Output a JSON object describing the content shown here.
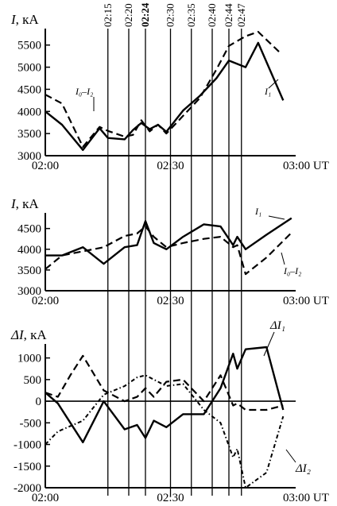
{
  "chart_data": [
    {
      "type": "line",
      "ylabel_symbol": "I",
      "ylabel_unit": ", кА",
      "yticks": [
        3000,
        3500,
        4000,
        4500,
        5000,
        5500
      ],
      "ylim": [
        3000,
        5800
      ],
      "xlim": [
        0,
        60
      ],
      "xtick_labels": [
        {
          "t": 0,
          "label": "02:00"
        },
        {
          "t": 30,
          "label": "02:30"
        },
        {
          "t": 60,
          "label": "03:00 UT"
        }
      ],
      "series": [
        {
          "key": "I1",
          "style": "solid",
          "label": "I₁",
          "x": [
            0,
            4,
            9,
            13,
            15,
            19,
            21,
            23,
            25,
            27,
            29,
            33,
            37,
            41,
            44,
            48,
            51
          ],
          "y": [
            4000,
            3700,
            3130,
            3620,
            3400,
            3370,
            3580,
            3740,
            3600,
            3700,
            3540,
            4020,
            4350,
            4750,
            5150,
            5000,
            5550
          ]
        },
        {
          "key": "I0I2",
          "style": "dashed",
          "label": "I₀–I₂",
          "x": [
            0,
            4,
            9,
            13,
            15,
            19,
            21,
            23,
            25,
            27,
            29,
            33,
            37,
            41,
            44,
            48,
            51
          ],
          "y": [
            4380,
            4180,
            3200,
            3650,
            3560,
            3430,
            3470,
            3800,
            3550,
            3700,
            3500,
            3900,
            4300,
            4950,
            5480,
            5700,
            5800
          ]
        }
      ],
      "end_points": [
        {
          "key": "I1",
          "x": 57,
          "y": 4250
        },
        {
          "key": "I0I2",
          "x": 56,
          "y": 5350
        }
      ]
    },
    {
      "type": "line",
      "ylabel_symbol": "I",
      "ylabel_unit": ", кА",
      "yticks": [
        3000,
        3500,
        4000,
        4500
      ],
      "ylim": [
        3000,
        4800
      ],
      "xlim": [
        0,
        60
      ],
      "xtick_labels": [
        {
          "t": 0,
          "label": "02:00"
        },
        {
          "t": 30,
          "label": "02:30"
        },
        {
          "t": 60,
          "label": "03:00 UT"
        }
      ],
      "series": [
        {
          "key": "I1",
          "style": "solid",
          "label": "I₁",
          "x": [
            0,
            4,
            9,
            14,
            19,
            22,
            24,
            26,
            29,
            33,
            38,
            42,
            45,
            46,
            48,
            53,
            59
          ],
          "y": [
            3850,
            3850,
            4050,
            3650,
            4050,
            4100,
            4680,
            4150,
            4000,
            4300,
            4600,
            4550,
            4100,
            4300,
            4000,
            4350,
            4750
          ]
        },
        {
          "key": "I0I2",
          "style": "dashed",
          "label": "I₀–I₂",
          "x": [
            0,
            4,
            9,
            14,
            19,
            22,
            24,
            26,
            29,
            33,
            38,
            42,
            45,
            46,
            48,
            53,
            59
          ],
          "y": [
            3520,
            3850,
            3950,
            4050,
            4320,
            4380,
            4550,
            4300,
            4050,
            4150,
            4250,
            4300,
            4050,
            4100,
            3400,
            3800,
            4400
          ]
        }
      ]
    },
    {
      "type": "line",
      "ylabel_symbol": "ΔI",
      "ylabel_unit": ", кА",
      "yticks": [
        -2000,
        -1500,
        -1000,
        -500,
        0,
        500,
        1000
      ],
      "ylim": [
        -2000,
        1250
      ],
      "xlim": [
        0,
        60
      ],
      "xtick_labels": [
        {
          "t": 0,
          "label": "02:00"
        },
        {
          "t": 30,
          "label": "02:30"
        },
        {
          "t": 60,
          "label": "03:00 UT"
        }
      ],
      "series": [
        {
          "key": "dI1",
          "style": "solid",
          "label": "ΔI₁",
          "x": [
            0,
            3,
            9,
            14,
            19,
            22,
            24,
            26,
            29,
            33,
            38,
            42,
            45,
            46,
            48,
            53,
            57
          ],
          "y": [
            200,
            -50,
            -950,
            0,
            -650,
            -550,
            -850,
            -450,
            -600,
            -300,
            -300,
            300,
            1100,
            750,
            1200,
            1250,
            -200
          ]
        },
        {
          "key": "dI_dashed",
          "style": "dashed",
          "label": "",
          "x": [
            0,
            3,
            6,
            9,
            14,
            19,
            22,
            24,
            26,
            29,
            33,
            38,
            42,
            45,
            46,
            48,
            53,
            57
          ],
          "y": [
            200,
            100,
            600,
            1050,
            250,
            0,
            100,
            300,
            100,
            450,
            500,
            0,
            600,
            -100,
            -50,
            -200,
            -200,
            -100
          ]
        },
        {
          "key": "dI2",
          "style": "dotted",
          "label": "ΔI₂",
          "x": [
            0,
            3,
            9,
            14,
            19,
            22,
            24,
            26,
            29,
            33,
            38,
            42,
            45,
            46,
            48,
            53,
            57
          ],
          "y": [
            -1000,
            -700,
            -450,
            150,
            350,
            550,
            600,
            500,
            350,
            400,
            -200,
            -500,
            -1300,
            -1100,
            -2000,
            -1650,
            -350
          ]
        }
      ]
    }
  ],
  "markers": {
    "times": [
      {
        "t": 15,
        "label": "02:15",
        "bold": false
      },
      {
        "t": 20,
        "label": "02:20",
        "bold": false
      },
      {
        "t": 24,
        "label": "02:24",
        "bold": true
      },
      {
        "t": 30,
        "label": "02:30",
        "bold": false
      },
      {
        "t": 35,
        "label": "02:35",
        "bold": false
      },
      {
        "t": 40,
        "label": "02:40",
        "bold": false
      },
      {
        "t": 44,
        "label": "02:44",
        "bold": false
      },
      {
        "t": 47,
        "label": "02:47",
        "bold": false
      }
    ]
  },
  "labels": {
    "top_I1": "I₁",
    "top_I0I2": "I₀–I₂",
    "mid_I1": "I₁",
    "mid_I0I2": "I₀–I₂",
    "bot_dI1": "ΔI₁",
    "bot_dI2": "ΔI₂"
  }
}
